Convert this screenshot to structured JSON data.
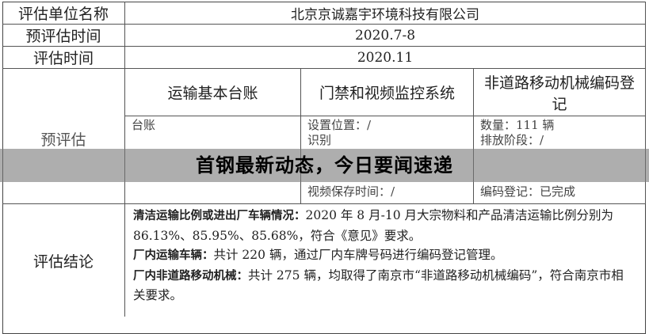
{
  "rows": {
    "unit_label": "评估单位名称",
    "unit_value": "北京京诚嘉宇环境科技有限公司",
    "pre_time_label": "预评估时间",
    "pre_time_value": "2020.7-8",
    "eval_time_label": "评估时间",
    "eval_time_value": "2020.11",
    "pre_label": "预评估",
    "col1_header": "运输基本台账",
    "col2_header": "门禁和视频监控系统",
    "col3_header": "非道路移动机械编码登记",
    "col1_lines": [
      "台账"
    ],
    "col2_lines": [
      "设置位置：/",
      "识别",
      "视频保存时间：/"
    ],
    "col3_lines": [
      "数量：111 辆",
      "排放阶段：/",
      "编码登记：已完成"
    ],
    "conclusion_label": "评估结论",
    "conclusion": [
      {
        "bold": "清洁运输比例或进出厂车辆情况：",
        "text": "2020 年 8 月-10 月大宗物料和产品清洁运输比例分别为 86.13%、85.95%、85.68%，符合《意见》要求。"
      },
      {
        "bold": "厂内运输车辆：",
        "text": "共计 220 辆，通过厂内车牌号码进行编码登记管理。"
      },
      {
        "bold": "厂内非道路移动机械：",
        "text": "共计 275 辆，均取得了南京市“非道路移动机械编码”，符合南京市相关要求。"
      }
    ]
  },
  "banner": {
    "title": "首钢最新动态，今日要闻速递"
  }
}
